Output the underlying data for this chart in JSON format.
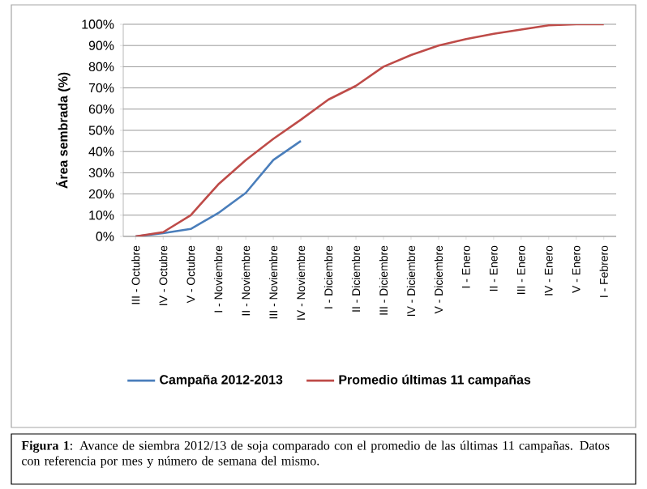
{
  "chart_data": {
    "type": "line",
    "ylabel": "Área sembrada (%)",
    "categories": [
      "III - Octubre",
      "IV - Octubre",
      "V - Octubre",
      "I - Noviembre",
      "II - Noviembre",
      "III - Noviembre",
      "IV - Noviembre",
      "I - Diciembre",
      "II - Diciembre",
      "III - Diciembre",
      "IV - Diciembre",
      "V - Diciembre",
      "I - Enero",
      "II - Enero",
      "III - Enero",
      "IV - Enero",
      "V - Enero",
      "I - Febrero"
    ],
    "series": [
      {
        "name": "Campaña 2012-2013",
        "color": "#4a7ebb",
        "values": [
          0,
          1.5,
          3.5,
          11,
          20.5,
          36,
          45,
          null,
          null,
          null,
          null,
          null,
          null,
          null,
          null,
          null,
          null,
          null
        ]
      },
      {
        "name": "Promedio últimas 11 campañas",
        "color": "#be4b48",
        "values": [
          0,
          2,
          10,
          24.5,
          36,
          46,
          55,
          64.5,
          71,
          80,
          85.5,
          90,
          93,
          95.5,
          97.5,
          99.5,
          100,
          100
        ]
      }
    ],
    "ylim": [
      0,
      100
    ],
    "yticks": [
      {
        "value": 0,
        "label": "0%"
      },
      {
        "value": 10,
        "label": "10%"
      },
      {
        "value": 20,
        "label": "20%"
      },
      {
        "value": 30,
        "label": "30%"
      },
      {
        "value": 40,
        "label": "40%"
      },
      {
        "value": 50,
        "label": "50%"
      },
      {
        "value": 60,
        "label": "60%"
      },
      {
        "value": 70,
        "label": "70%"
      },
      {
        "value": 80,
        "label": "80%"
      },
      {
        "value": 90,
        "label": "90%"
      },
      {
        "value": 100,
        "label": "100%"
      }
    ],
    "grid": "y",
    "legend": "bottom",
    "annotations": [
      "**Figura 1**: Avance de siembra 2012/13 de soja comparado con el promedio de las últimas 11 campañas. Datos con referencia por mes y número de semana del mismo."
    ]
  }
}
